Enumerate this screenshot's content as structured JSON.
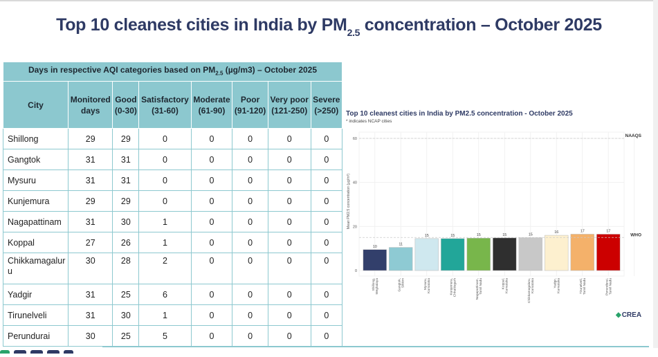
{
  "page": {
    "title_prefix": "Top 10 cleanest cities in India by PM",
    "title_sub": "2.5",
    "title_suffix": " concentration – October 2025"
  },
  "table": {
    "super_header_prefix": "Days in respective AQI categories based on PM",
    "super_header_sub": "2.5",
    "super_header_suffix": " (µg/m3) – October 2025",
    "columns": [
      {
        "line1": "City",
        "line2": ""
      },
      {
        "line1": "Monitored",
        "line2": "days"
      },
      {
        "line1": "Good",
        "line2": "(0-30)"
      },
      {
        "line1": "Satisfactory",
        "line2": "(31-60)"
      },
      {
        "line1": "Moderate",
        "line2": "(61-90)"
      },
      {
        "line1": "Poor",
        "line2": "(91-120)"
      },
      {
        "line1": "Very poor",
        "line2": "(121-250)"
      },
      {
        "line1": "Severe",
        "line2": "(>250)"
      }
    ],
    "rows": [
      {
        "city": "Shillong",
        "monitored": "29",
        "good": "29",
        "satisfactory": "0",
        "moderate": "0",
        "poor": "0",
        "very_poor": "0",
        "severe": "0"
      },
      {
        "city": "Gangtok",
        "monitored": "31",
        "good": "31",
        "satisfactory": "0",
        "moderate": "0",
        "poor": "0",
        "very_poor": "0",
        "severe": "0"
      },
      {
        "city": "Mysuru",
        "monitored": "31",
        "good": "31",
        "satisfactory": "0",
        "moderate": "0",
        "poor": "0",
        "very_poor": "0",
        "severe": "0"
      },
      {
        "city": "Kunjemura",
        "monitored": "29",
        "good": "29",
        "satisfactory": "0",
        "moderate": "0",
        "poor": "0",
        "very_poor": "0",
        "severe": "0"
      },
      {
        "city": "Nagapattinam",
        "monitored": "31",
        "good": "30",
        "satisfactory": "1",
        "moderate": "0",
        "poor": "0",
        "very_poor": "0",
        "severe": "0"
      },
      {
        "city": "Koppal",
        "monitored": "27",
        "good": "26",
        "satisfactory": "1",
        "moderate": "0",
        "poor": "0",
        "very_poor": "0",
        "severe": "0"
      },
      {
        "city": "Chikkamagaluru",
        "monitored": "30",
        "good": "28",
        "satisfactory": "2",
        "moderate": "0",
        "poor": "0",
        "very_poor": "0",
        "severe": "0"
      },
      {
        "city": "Yadgir",
        "monitored": "31",
        "good": "25",
        "satisfactory": "6",
        "moderate": "0",
        "poor": "0",
        "very_poor": "0",
        "severe": "0"
      },
      {
        "city": "Tirunelveli",
        "monitored": "31",
        "good": "30",
        "satisfactory": "1",
        "moderate": "0",
        "poor": "0",
        "very_poor": "0",
        "severe": "0"
      },
      {
        "city": "Perundurai",
        "monitored": "30",
        "good": "25",
        "satisfactory": "5",
        "moderate": "0",
        "poor": "0",
        "very_poor": "0",
        "severe": "0"
      }
    ]
  },
  "logo": {
    "text": "CREA"
  },
  "chart_data": {
    "type": "bar",
    "title": "Top 10 cleanest cities in India by PM2.5 concentration - October 2025",
    "subtitle": "* indicates NCAP cities",
    "xlabel": "",
    "ylabel": "Mean PM2.5 concentration (µg/m³)",
    "ylim": [
      0,
      60
    ],
    "yticks": [
      0,
      20,
      40,
      60
    ],
    "grid": true,
    "categories": [
      "Shillong,\nMeghalaya",
      "Gangtok,\nSikkim",
      "Mysuru,\nKarnataka",
      "Kunjemura,\nChhattisgarh",
      "Nagapattinam,\nTamil Nadu",
      "Koppal,\nKarnataka",
      "Chikkamagaluru,\nKarnataka",
      "Yadgir,\nKarnataka",
      "Tirunelveli,\nTamil Nadu",
      "Perundurai,\nTamil Nadu"
    ],
    "values": [
      9.5,
      10.5,
      14.5,
      14.5,
      14.7,
      14.8,
      14.9,
      16.0,
      16.5,
      16.5
    ],
    "data_labels": [
      "10",
      "11",
      "15",
      "15",
      "15",
      "15",
      "15",
      "16",
      "17",
      "17"
    ],
    "colors": [
      "#323f6b",
      "#8ecad3",
      "#cfe8ef",
      "#22a699",
      "#78b64b",
      "#2f2f2f",
      "#c8c8c8",
      "#fdf0cf",
      "#f4b16a",
      "#cc0000"
    ],
    "reference_lines": [
      {
        "label": "NAAQS",
        "value": 60
      },
      {
        "label": "WHO",
        "value": 15
      }
    ]
  }
}
